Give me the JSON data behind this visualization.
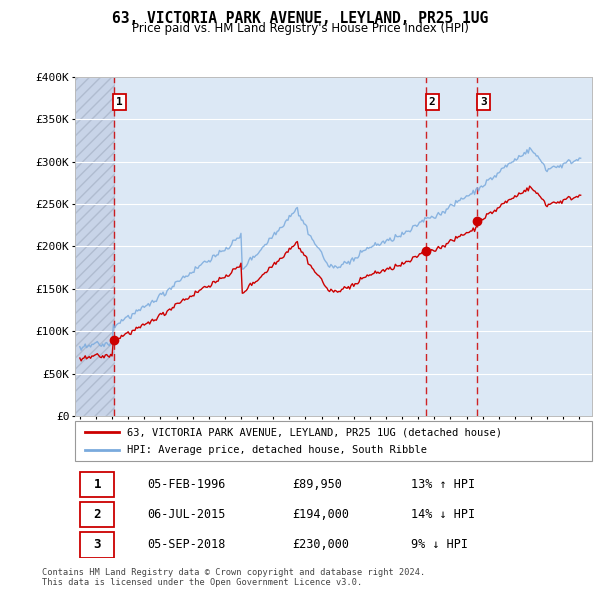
{
  "title": "63, VICTORIA PARK AVENUE, LEYLAND, PR25 1UG",
  "subtitle": "Price paid vs. HM Land Registry's House Price Index (HPI)",
  "legend_label_red": "63, VICTORIA PARK AVENUE, LEYLAND, PR25 1UG (detached house)",
  "legend_label_blue": "HPI: Average price, detached house, South Ribble",
  "copyright": "Contains HM Land Registry data © Crown copyright and database right 2024.\nThis data is licensed under the Open Government Licence v3.0.",
  "transactions": [
    {
      "num": 1,
      "date": "05-FEB-1996",
      "price": 89950,
      "pct": "13%",
      "dir": "↑"
    },
    {
      "num": 2,
      "date": "06-JUL-2015",
      "price": 194000,
      "pct": "14%",
      "dir": "↓"
    },
    {
      "num": 3,
      "date": "05-SEP-2018",
      "price": 230000,
      "pct": "9%",
      "dir": "↓"
    }
  ],
  "transaction_years": [
    1996.09,
    2015.51,
    2018.68
  ],
  "transaction_prices": [
    89950,
    194000,
    230000
  ],
  "ylim": [
    0,
    400000
  ],
  "xlim_left": 1993.7,
  "xlim_right": 2025.8,
  "hatch_end": 1996.09,
  "colors": {
    "red_line": "#cc0000",
    "blue_line": "#7aaadd",
    "hatch_bg": "#c8d4e8",
    "plot_bg": "#dce8f5",
    "dashed_red": "#cc0000",
    "grid": "#ffffff",
    "box_border": "#cc0000"
  }
}
